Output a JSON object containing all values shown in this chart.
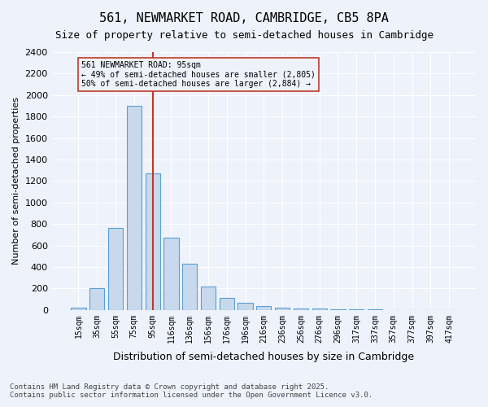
{
  "title": "561, NEWMARKET ROAD, CAMBRIDGE, CB5 8PA",
  "subtitle": "Size of property relative to semi-detached houses in Cambridge",
  "xlabel": "Distribution of semi-detached houses by size in Cambridge",
  "ylabel": "Number of semi-detached properties",
  "property_size": 95,
  "property_label": "561 NEWMARKET ROAD: 95sqm",
  "pct_smaller": 49,
  "pct_larger": 50,
  "n_smaller": 2805,
  "n_larger": 2884,
  "bar_color": "#c8d9ed",
  "bar_edgecolor": "#5a9fd4",
  "highlight_line_color": "#c0392b",
  "annotation_box_edgecolor": "#c0392b",
  "background_color": "#eef2fb",
  "grid_color": "#ffffff",
  "bins": [
    "15sqm",
    "35sqm",
    "55sqm",
    "75sqm",
    "95sqm",
    "116sqm",
    "136sqm",
    "156sqm",
    "176sqm",
    "196sqm",
    "216sqm",
    "236sqm",
    "256sqm",
    "276sqm",
    "296sqm",
    "317sqm",
    "337sqm",
    "357sqm",
    "377sqm",
    "397sqm",
    "417sqm"
  ],
  "values": [
    20,
    200,
    760,
    1900,
    1270,
    670,
    430,
    220,
    110,
    65,
    35,
    20,
    15,
    10,
    8,
    5,
    3,
    2,
    1,
    0,
    0
  ],
  "ylim": [
    0,
    2400
  ],
  "yticks": [
    0,
    200,
    400,
    600,
    800,
    1000,
    1200,
    1400,
    1600,
    1800,
    2000,
    2200,
    2400
  ],
  "footer_line1": "Contains HM Land Registry data © Crown copyright and database right 2025.",
  "footer_line2": "Contains public sector information licensed under the Open Government Licence v3.0."
}
